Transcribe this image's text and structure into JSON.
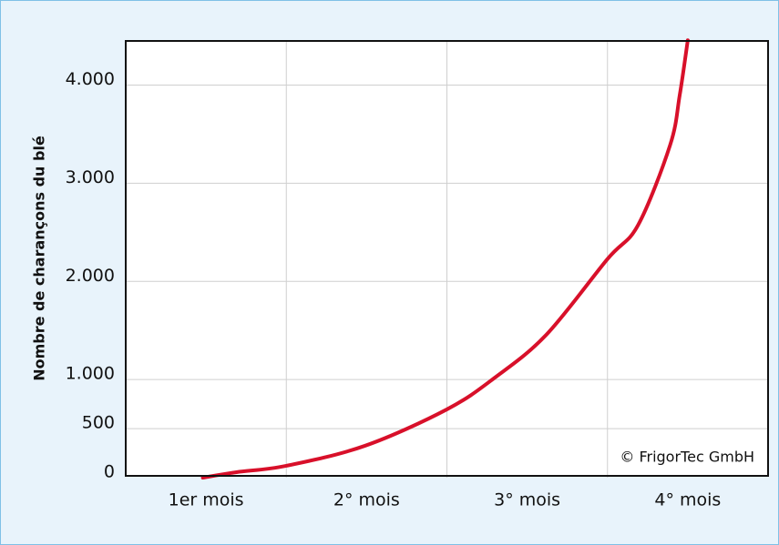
{
  "chart_data": {
    "type": "line",
    "y_label": "Nombre de charançons du blé",
    "annotation": "© FrigorTec GmbH",
    "categories": [
      "1er mois",
      "2° mois",
      "3° mois",
      "4° mois"
    ],
    "x": [
      0.48,
      0.69,
      1.0,
      1.49,
      2.0,
      2.3,
      2.62,
      3.0,
      3.19,
      3.39,
      3.45,
      3.5
    ],
    "series": [
      {
        "name": "Charançons",
        "color": "#d8102a",
        "values": [
          0,
          56,
          121,
          325,
          696,
          1021,
          1458,
          2228,
          2572,
          3389,
          3900,
          4457
        ]
      }
    ],
    "xlim": [
      0,
      4
    ],
    "xticks": [
      1,
      2,
      3
    ],
    "ylim": [
      0,
      4450
    ],
    "yticks": [
      0,
      500,
      {
        "value": 1000,
        "label": "1.000"
      },
      {
        "value": 2000,
        "label": "2.000"
      },
      {
        "value": 3000,
        "label": "3.000"
      },
      {
        "value": 4000,
        "label": "4.000"
      }
    ],
    "grid": true
  }
}
